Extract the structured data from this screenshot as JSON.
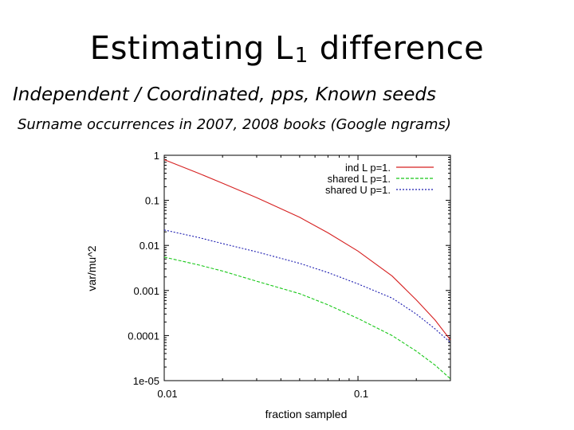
{
  "slide": {
    "title_main": "Estimating L",
    "title_subscript": "1",
    "title_end": "difference",
    "subtitle": "Independent / Coordinated, pps, Known seeds",
    "description": "Surname occurrences in 2007, 2008 books (Google ngrams)"
  },
  "chart_data": {
    "type": "line",
    "title": "",
    "xlabel": "fraction sampled",
    "ylabel": "var/mu^2",
    "xscale": "log",
    "yscale": "log",
    "xlim": [
      0.01,
      0.3
    ],
    "ylim": [
      1e-05,
      1
    ],
    "xticks": [
      {
        "value": 0.01,
        "label": "0.01"
      },
      {
        "value": 0.1,
        "label": "0.1"
      }
    ],
    "yticks": [
      {
        "value": 1,
        "label": "1"
      },
      {
        "value": 0.1,
        "label": "0.1"
      },
      {
        "value": 0.01,
        "label": "0.01"
      },
      {
        "value": 0.001,
        "label": "0.001"
      },
      {
        "value": 0.0001,
        "label": "0.0001"
      },
      {
        "value": 1e-05,
        "label": "1e-05"
      }
    ],
    "grid": false,
    "legend_position": "top-right",
    "series": [
      {
        "name": "ind L p=1.",
        "color": "#d62020",
        "dash": "solid",
        "x": [
          0.01,
          0.015,
          0.02,
          0.03,
          0.05,
          0.07,
          0.1,
          0.15,
          0.2,
          0.25,
          0.3
        ],
        "y": [
          0.8,
          0.4,
          0.24,
          0.115,
          0.042,
          0.019,
          0.0075,
          0.0021,
          0.00062,
          0.00022,
          8e-05
        ]
      },
      {
        "name": "shared L p=1.",
        "color": "#19c819",
        "dash": "dashed",
        "x": [
          0.01,
          0.015,
          0.02,
          0.03,
          0.05,
          0.07,
          0.1,
          0.15,
          0.2,
          0.25,
          0.3
        ],
        "y": [
          0.0055,
          0.0037,
          0.0027,
          0.0016,
          0.00085,
          0.00048,
          0.00024,
          0.0001,
          4.5e-05,
          2.2e-05,
          1.1e-05
        ]
      },
      {
        "name": "shared U p=1.",
        "color": "#1c1cb0",
        "dash": "dotted",
        "x": [
          0.01,
          0.015,
          0.02,
          0.03,
          0.05,
          0.07,
          0.1,
          0.15,
          0.2,
          0.25,
          0.3
        ],
        "y": [
          0.022,
          0.015,
          0.011,
          0.0072,
          0.004,
          0.0025,
          0.0014,
          0.00068,
          0.0003,
          0.00014,
          7e-05
        ]
      }
    ]
  }
}
